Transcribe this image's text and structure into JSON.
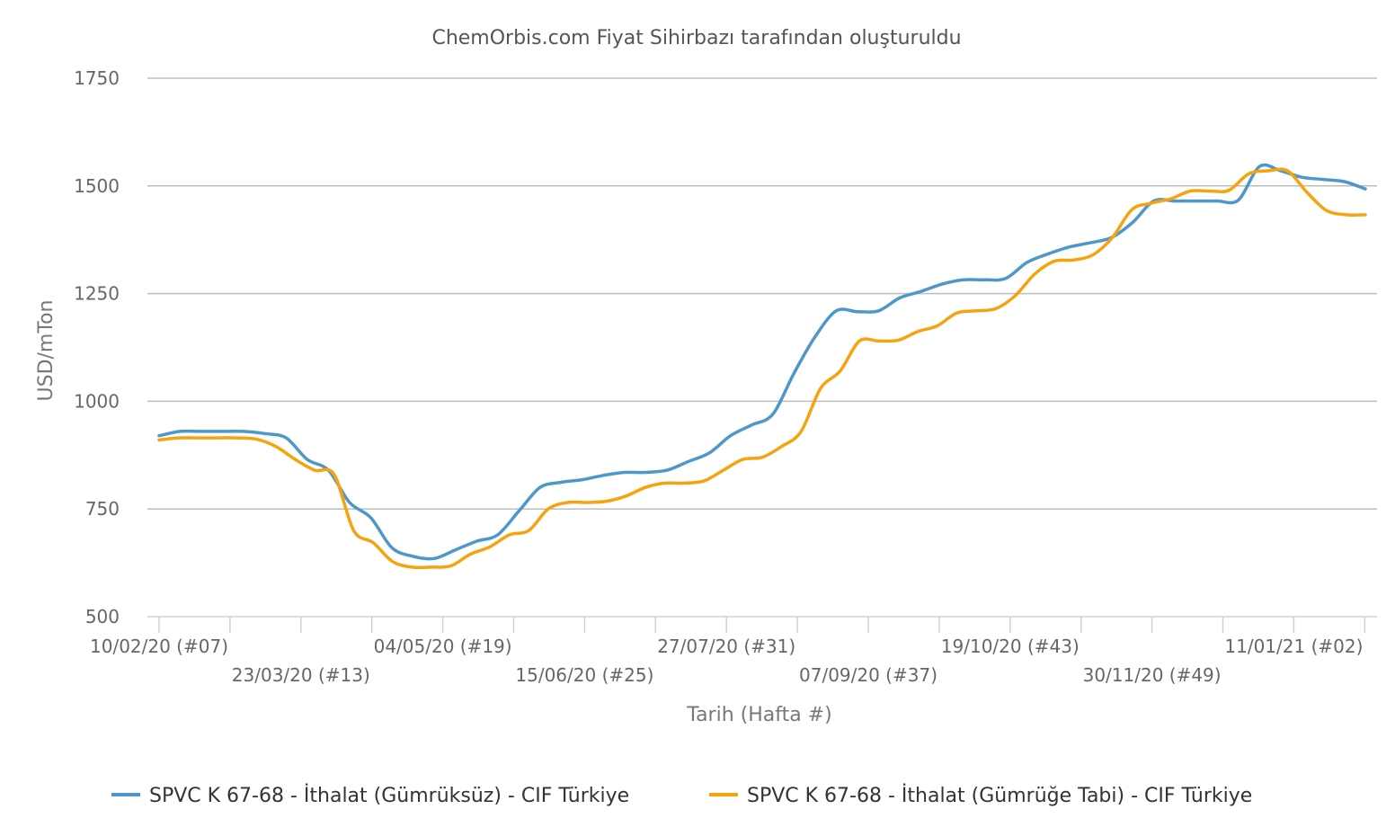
{
  "chart_data": {
    "type": "line",
    "title": "ChemOrbis.com Fiyat Sihirbazı tarafından oluşturuldu",
    "xlabel": "Tarih (Hafta #)",
    "ylabel": "USD/mTon",
    "ylim": [
      500,
      1750
    ],
    "yticks": [
      "500",
      "750",
      "1000",
      "1250",
      "1500",
      "1750"
    ],
    "ytick_values": [
      500,
      750,
      1000,
      1250,
      1500,
      1750
    ],
    "grid": true,
    "legend_position": "bottom",
    "xtick_labels": [
      "10/02/20 (#07)",
      "23/03/20 (#13)",
      "04/05/20 (#19)",
      "15/06/20 (#25)",
      "27/07/20 (#31)",
      "07/09/20 (#37)",
      "19/10/20 (#43)",
      "30/11/20 (#49)",
      "11/01/21 (#02)"
    ],
    "series": [
      {
        "name": "SPVC K 67-68 - İthalat (Gümrüksüz) - CIF Türkiye",
        "color": "#4e97cb",
        "values": [
          920,
          930,
          930,
          930,
          930,
          925,
          915,
          865,
          840,
          765,
          730,
          660,
          640,
          635,
          655,
          675,
          690,
          745,
          800,
          812,
          818,
          828,
          835,
          835,
          840,
          860,
          880,
          920,
          945,
          970,
          1065,
          1150,
          1210,
          1208,
          1210,
          1240,
          1255,
          1272,
          1282,
          1282,
          1285,
          1322,
          1342,
          1358,
          1368,
          1380,
          1415,
          1465,
          1465,
          1465,
          1465,
          1467,
          1545,
          1535,
          1520,
          1515,
          1510,
          1493
        ]
      },
      {
        "name": "SPVC K 67-68 - İthalat (Gümrüğe Tabi) - CIF Türkiye",
        "color": "#f5a30f",
        "values": [
          910,
          915,
          915,
          915,
          915,
          912,
          895,
          865,
          840,
          830,
          700,
          672,
          628,
          615,
          615,
          618,
          645,
          662,
          690,
          700,
          750,
          765,
          765,
          768,
          780,
          800,
          810,
          810,
          815,
          840,
          865,
          870,
          895,
          930,
          1030,
          1070,
          1140,
          1140,
          1142,
          1162,
          1175,
          1205,
          1210,
          1215,
          1245,
          1295,
          1325,
          1328,
          1340,
          1380,
          1445,
          1460,
          1470,
          1488,
          1488,
          1490,
          1528,
          1535,
          1535,
          1485,
          1443,
          1433,
          1433
        ]
      }
    ]
  }
}
